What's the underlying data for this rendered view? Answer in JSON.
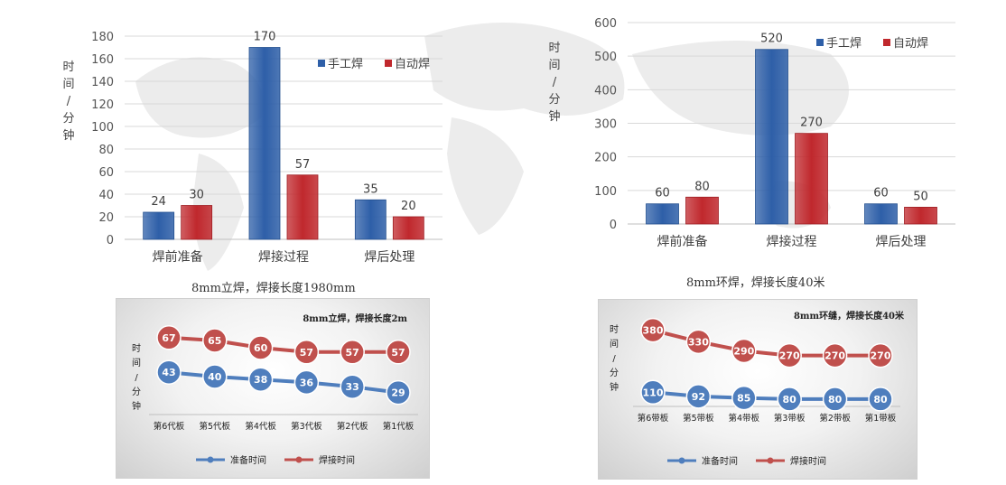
{
  "captions": {
    "left": "8mm立焊，焊接长度1980mm",
    "right": "8mm环焊，焊接长度40米"
  },
  "colors": {
    "manual": "#2e5fa8",
    "auto": "#c0282d",
    "prep_line": "#4f7ebd",
    "weld_line": "#c0504d",
    "axis_text": "#555555"
  },
  "chart_data": [
    {
      "type": "bar",
      "id": "bar-left",
      "categories": [
        "焊前准备",
        "焊接过程",
        "焊后处理"
      ],
      "series": [
        {
          "name": "手工焊",
          "values": [
            24,
            170,
            35
          ]
        },
        {
          "name": "自动焊",
          "values": [
            30,
            57,
            20
          ]
        }
      ],
      "yticks": [
        "0",
        "20",
        "40",
        "60",
        "80",
        "100",
        "120",
        "140",
        "160",
        "180"
      ],
      "ylim": [
        0,
        180
      ],
      "ylabel": "时间/分钟",
      "legend": "top-right",
      "grid": true
    },
    {
      "type": "bar",
      "id": "bar-right",
      "categories": [
        "焊前准备",
        "焊接过程",
        "焊后处理"
      ],
      "series": [
        {
          "name": "手工焊",
          "values": [
            60,
            520,
            60
          ]
        },
        {
          "name": "自动焊",
          "values": [
            80,
            270,
            50
          ]
        }
      ],
      "yticks": [
        "0",
        "100",
        "200",
        "300",
        "400",
        "500",
        "600"
      ],
      "ylim": [
        0,
        600
      ],
      "ylabel": "时间/分钟",
      "legend": "top-right",
      "grid": true
    },
    {
      "type": "line",
      "id": "line-left",
      "title": "8mm立焊，焊接长度2m",
      "categories": [
        "第6代板",
        "第5代板",
        "第4代板",
        "第3代板",
        "第2代板",
        "第1代板"
      ],
      "series": [
        {
          "name": "准备时间",
          "values": [
            43,
            40,
            38,
            36,
            33,
            29
          ]
        },
        {
          "name": "焊接时间",
          "values": [
            67,
            65,
            60,
            57,
            57,
            57
          ]
        }
      ],
      "ylim": [
        20,
        75
      ],
      "ylabel": "时间/分钟",
      "legend": "bottom",
      "grid": false
    },
    {
      "type": "line",
      "id": "line-right",
      "title": "8mm环缝，焊接长度40米",
      "categories": [
        "第6带板",
        "第5带板",
        "第4带板",
        "第3带板",
        "第2带板",
        "第1带板"
      ],
      "series": [
        {
          "name": "准备时间",
          "values": [
            110,
            92,
            85,
            80,
            80,
            80
          ]
        },
        {
          "name": "焊接时间",
          "values": [
            380,
            330,
            290,
            270,
            270,
            270
          ]
        }
      ],
      "ylim": [
        60,
        410
      ],
      "ylabel": "时间/分钟",
      "legend": "bottom",
      "grid": false
    }
  ]
}
